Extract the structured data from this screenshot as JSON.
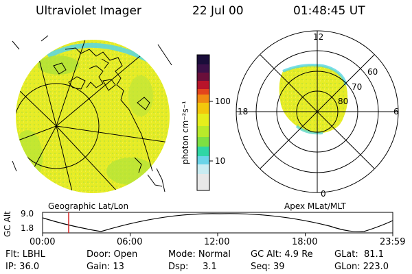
{
  "header": {
    "instrument": "Ultraviolet Imager",
    "date": "22 Jul 00",
    "time": "01:48:45 UT"
  },
  "colorbar": {
    "label": "photon cm⁻²s⁻¹",
    "tick_100": "100",
    "tick_10": "10",
    "colors_top_to_bottom": [
      "#1a0d3a",
      "#3b1048",
      "#6a0f3a",
      "#b8142a",
      "#e3441c",
      "#f08a12",
      "#f3c70c",
      "#e6ee1c",
      "#b9ea2a",
      "#7ee043",
      "#2fd6a5",
      "#6ad4e8",
      "#c9ecf2",
      "#e8e8e8"
    ]
  },
  "geo_panel": {
    "label": "Geographic Lat/Lon"
  },
  "polar_panel": {
    "label": "Apex MLat/MLT",
    "mlt_top": "12",
    "mlt_left": "18",
    "mlt_right": "6",
    "mlt_bottom": "0",
    "lat_60": "60",
    "lat_70": "70",
    "lat_80": "80"
  },
  "orbit_plot": {
    "ylabel": "GC Alt",
    "ytick_top": "9.0",
    "ytick_bottom": "1.8",
    "xticks": [
      "00:00",
      "06:00",
      "12:00",
      "18:00",
      "23:59"
    ],
    "current_time_marker_hours": 1.81
  },
  "status": {
    "flt": "Flt: LBHL",
    "ip": "IP: 36.0",
    "door": "Door: Open",
    "gain": "Gain: 13",
    "mode": "Mode: Normal",
    "dsp": "Dsp:     3.1",
    "gc_alt": "GC Alt: 4.9 Re",
    "seq": "Seq: 39",
    "glat": "GLat:  81.1",
    "glon": "GLon: 223.0"
  },
  "colors": {
    "emission_yellow": "#e8ec2a",
    "emission_green": "#b9e62f",
    "limb_cyan": "#56d6e6",
    "marker_red": "#d22020"
  }
}
